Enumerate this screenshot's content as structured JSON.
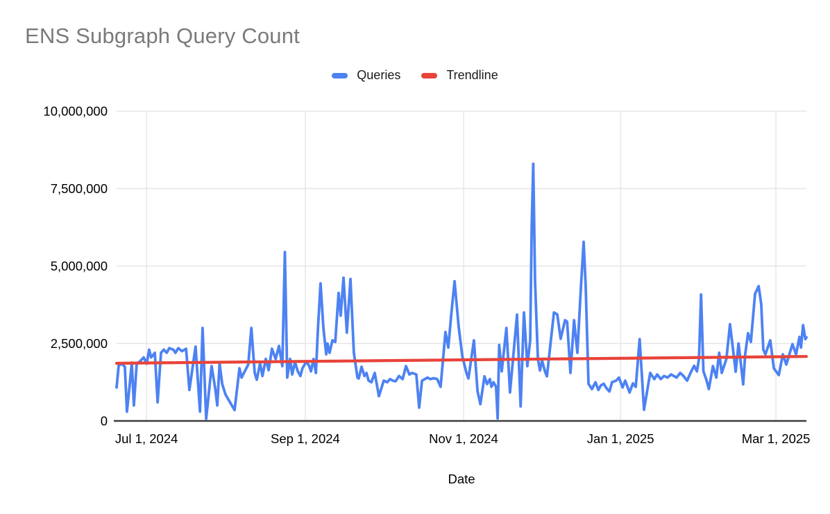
{
  "title": "ENS Subgraph Query Count",
  "legend": {
    "items": [
      {
        "label": "Queries",
        "color": "#4d82f3"
      },
      {
        "label": "Trendline",
        "color": "#e8443a"
      }
    ]
  },
  "colors": {
    "background": "#ffffff",
    "title_text": "#7a7a7a",
    "axis_text": "#000000",
    "gridline": "#e6e6e6",
    "axis_line": "#3c3c3c",
    "series_blue": "#4d82f3",
    "trend_red": "#e8443a"
  },
  "chart_data": {
    "type": "line",
    "title": "ENS Subgraph Query Count",
    "xlabel": "Date",
    "ylabel": "",
    "grid": true,
    "legend_position": "top",
    "x_unit": "days (0 = Jun 19, 2024)",
    "x_domain": [
      0,
      267.2
    ],
    "y_domain": [
      0,
      10000000
    ],
    "value_scale": 1000000,
    "y_ticks": [
      {
        "value": 0,
        "label": "0"
      },
      {
        "value": 2500000,
        "label": "2,500,000"
      },
      {
        "value": 5000000,
        "label": "5,000,000"
      },
      {
        "value": 7500000,
        "label": "7,500,000"
      },
      {
        "value": 10000000,
        "label": "10,000,000"
      }
    ],
    "x_ticks": [
      {
        "day": 11.6,
        "label": "Jul 1, 2024"
      },
      {
        "day": 73.1,
        "label": "Sep 1, 2024"
      },
      {
        "day": 134.4,
        "label": "Nov 1, 2024"
      },
      {
        "day": 195.2,
        "label": "Jan 1, 2025"
      },
      {
        "day": 255.4,
        "label": "Mar 1, 2025"
      }
    ],
    "series": [
      {
        "name": "Queries",
        "color": "#4d82f3",
        "width": 3.8,
        "points": [
          [
            0,
            1.08
          ],
          [
            0.8,
            1.78
          ],
          [
            2,
            1.85
          ],
          [
            3.2,
            1.75
          ],
          [
            4,
            0.3
          ],
          [
            5,
            1.1
          ],
          [
            5.9,
            1.88
          ],
          [
            6.7,
            0.5
          ],
          [
            7.8,
            1.85
          ],
          [
            9,
            1.92
          ],
          [
            10.5,
            2.05
          ],
          [
            11.7,
            1.85
          ],
          [
            12.6,
            2.3
          ],
          [
            13.4,
            2.05
          ],
          [
            14.8,
            2.2
          ],
          [
            15.9,
            0.6
          ],
          [
            17.2,
            2.2
          ],
          [
            18.3,
            2.3
          ],
          [
            19.4,
            2.2
          ],
          [
            20.4,
            2.35
          ],
          [
            22,
            2.3
          ],
          [
            22.8,
            2.2
          ],
          [
            23.9,
            2.35
          ],
          [
            25.3,
            2.25
          ],
          [
            26.9,
            2.33
          ],
          [
            28.2,
            1.0
          ],
          [
            30.6,
            2.4
          ],
          [
            32.3,
            0.3
          ],
          [
            33.3,
            3.0
          ],
          [
            34.7,
            0.07
          ],
          [
            36.8,
            1.77
          ],
          [
            38.2,
            1.05
          ],
          [
            39,
            0.5
          ],
          [
            39.9,
            1.85
          ],
          [
            40.9,
            1.19
          ],
          [
            42.2,
            0.85
          ],
          [
            45.7,
            0.35
          ],
          [
            47.6,
            1.7
          ],
          [
            48.4,
            1.4
          ],
          [
            51,
            1.82
          ],
          [
            52.2,
            3.0
          ],
          [
            53.5,
            1.55
          ],
          [
            54.3,
            1.33
          ],
          [
            55.6,
            1.86
          ],
          [
            56.5,
            1.45
          ],
          [
            57.8,
            2.0
          ],
          [
            58.9,
            1.64
          ],
          [
            60.2,
            2.33
          ],
          [
            61.6,
            2.0
          ],
          [
            62.9,
            2.42
          ],
          [
            64.2,
            1.77
          ],
          [
            65.2,
            5.45
          ],
          [
            66.1,
            1.4
          ],
          [
            67.2,
            2.0
          ],
          [
            68,
            1.5
          ],
          [
            69.1,
            1.9
          ],
          [
            70.2,
            1.6
          ],
          [
            71.2,
            1.45
          ],
          [
            72,
            1.7
          ],
          [
            73.4,
            1.9
          ],
          [
            74.5,
            1.8
          ],
          [
            75.3,
            1.6
          ],
          [
            76.3,
            2.0
          ],
          [
            77.2,
            1.55
          ],
          [
            78,
            3.0
          ],
          [
            79,
            4.44
          ],
          [
            80.1,
            3.0
          ],
          [
            81.2,
            2.15
          ],
          [
            81.7,
            2.5
          ],
          [
            82.5,
            2.2
          ],
          [
            83.6,
            2.6
          ],
          [
            84.7,
            2.55
          ],
          [
            86,
            4.13
          ],
          [
            86.8,
            3.4
          ],
          [
            87.9,
            4.62
          ],
          [
            89.2,
            2.85
          ],
          [
            90.6,
            4.58
          ],
          [
            91.9,
            2.2
          ],
          [
            93.3,
            1.4
          ],
          [
            93.8,
            1.37
          ],
          [
            94.9,
            1.75
          ],
          [
            96,
            1.45
          ],
          [
            96.8,
            1.55
          ],
          [
            97.6,
            1.3
          ],
          [
            98.7,
            1.25
          ],
          [
            100,
            1.55
          ],
          [
            101.6,
            0.8
          ],
          [
            103.5,
            1.3
          ],
          [
            104.8,
            1.25
          ],
          [
            105.9,
            1.35
          ],
          [
            107,
            1.3
          ],
          [
            108.1,
            1.28
          ],
          [
            109.4,
            1.45
          ],
          [
            110.8,
            1.35
          ],
          [
            112.1,
            1.77
          ],
          [
            113.4,
            1.5
          ],
          [
            114.5,
            1.55
          ],
          [
            116.1,
            1.5
          ],
          [
            117.2,
            0.43
          ],
          [
            118.3,
            1.3
          ],
          [
            119.4,
            1.35
          ],
          [
            120.4,
            1.4
          ],
          [
            121.5,
            1.35
          ],
          [
            122.8,
            1.38
          ],
          [
            124.2,
            1.35
          ],
          [
            125.5,
            1.1
          ],
          [
            127.4,
            2.87
          ],
          [
            128.5,
            2.37
          ],
          [
            129.6,
            3.4
          ],
          [
            130.9,
            4.51
          ],
          [
            132.5,
            3.05
          ],
          [
            133.9,
            2.1
          ],
          [
            135.5,
            1.55
          ],
          [
            136.3,
            1.37
          ],
          [
            138.4,
            2.6
          ],
          [
            139.8,
            0.96
          ],
          [
            140.9,
            0.54
          ],
          [
            142.5,
            1.44
          ],
          [
            143.5,
            1.19
          ],
          [
            144.6,
            1.35
          ],
          [
            145.2,
            1.1
          ],
          [
            146,
            1.25
          ],
          [
            147,
            1.1
          ],
          [
            147.6,
            0.08
          ],
          [
            148.2,
            2.45
          ],
          [
            149.2,
            1.6
          ],
          [
            151,
            3.0
          ],
          [
            152.4,
            0.92
          ],
          [
            155.1,
            3.43
          ],
          [
            156.5,
            0.47
          ],
          [
            157.8,
            3.5
          ],
          [
            159.1,
            1.77
          ],
          [
            160.2,
            2.6
          ],
          [
            160.8,
            6.3
          ],
          [
            161.4,
            8.3
          ],
          [
            162.1,
            4.5
          ],
          [
            163.2,
            2.0
          ],
          [
            164,
            1.63
          ],
          [
            164.8,
            1.95
          ],
          [
            165.9,
            1.6
          ],
          [
            166.7,
            1.44
          ],
          [
            169.4,
            3.5
          ],
          [
            170.7,
            3.44
          ],
          [
            172,
            2.65
          ],
          [
            173.7,
            3.25
          ],
          [
            174.5,
            3.2
          ],
          [
            175.8,
            1.55
          ],
          [
            177.2,
            3.25
          ],
          [
            178.5,
            2.2
          ],
          [
            179.8,
            4.24
          ],
          [
            180.9,
            5.78
          ],
          [
            181.7,
            4.4
          ],
          [
            182.8,
            1.2
          ],
          [
            184.1,
            1.03
          ],
          [
            185.5,
            1.25
          ],
          [
            186.6,
            1.0
          ],
          [
            187.6,
            1.15
          ],
          [
            188.7,
            1.2
          ],
          [
            189.8,
            1.05
          ],
          [
            190.9,
            0.95
          ],
          [
            191.9,
            1.25
          ],
          [
            193.5,
            1.3
          ],
          [
            194.6,
            1.4
          ],
          [
            196,
            1.08
          ],
          [
            197,
            1.3
          ],
          [
            198.7,
            0.92
          ],
          [
            200,
            1.21
          ],
          [
            201.1,
            1.1
          ],
          [
            202.6,
            2.64
          ],
          [
            204.3,
            0.36
          ],
          [
            206.7,
            1.55
          ],
          [
            208.3,
            1.35
          ],
          [
            209.4,
            1.5
          ],
          [
            210.8,
            1.35
          ],
          [
            212.1,
            1.45
          ],
          [
            213.4,
            1.4
          ],
          [
            214.8,
            1.5
          ],
          [
            216.9,
            1.4
          ],
          [
            218.3,
            1.55
          ],
          [
            219.6,
            1.45
          ],
          [
            221,
            1.3
          ],
          [
            222.3,
            1.55
          ],
          [
            223.7,
            1.78
          ],
          [
            224.8,
            1.6
          ],
          [
            225.6,
            2.0
          ],
          [
            226.4,
            4.08
          ],
          [
            227.3,
            1.6
          ],
          [
            228.5,
            1.32
          ],
          [
            229.4,
            1.03
          ],
          [
            231,
            1.77
          ],
          [
            232.3,
            1.4
          ],
          [
            233.4,
            2.2
          ],
          [
            234.4,
            1.55
          ],
          [
            236.2,
            2.0
          ],
          [
            237.6,
            3.12
          ],
          [
            239.8,
            1.59
          ],
          [
            240.9,
            2.5
          ],
          [
            242.7,
            1.18
          ],
          [
            243.5,
            2.15
          ],
          [
            244.6,
            2.83
          ],
          [
            245.7,
            2.55
          ],
          [
            247.3,
            4.1
          ],
          [
            248.7,
            4.35
          ],
          [
            249.7,
            3.77
          ],
          [
            250.5,
            2.3
          ],
          [
            251.3,
            2.15
          ],
          [
            253.2,
            2.6
          ],
          [
            254.6,
            1.7
          ],
          [
            256.5,
            1.48
          ],
          [
            258.1,
            2.15
          ],
          [
            259.4,
            1.82
          ],
          [
            261.8,
            2.48
          ],
          [
            263.2,
            2.15
          ],
          [
            264.5,
            2.71
          ],
          [
            265.1,
            2.37
          ],
          [
            265.9,
            3.09
          ],
          [
            266.8,
            2.64
          ],
          [
            267.2,
            2.7
          ]
        ]
      },
      {
        "name": "Trendline",
        "color": "#e8443a",
        "width": 4.2,
        "points": [
          [
            0,
            1.86
          ],
          [
            267.2,
            2.08
          ]
        ]
      }
    ]
  }
}
